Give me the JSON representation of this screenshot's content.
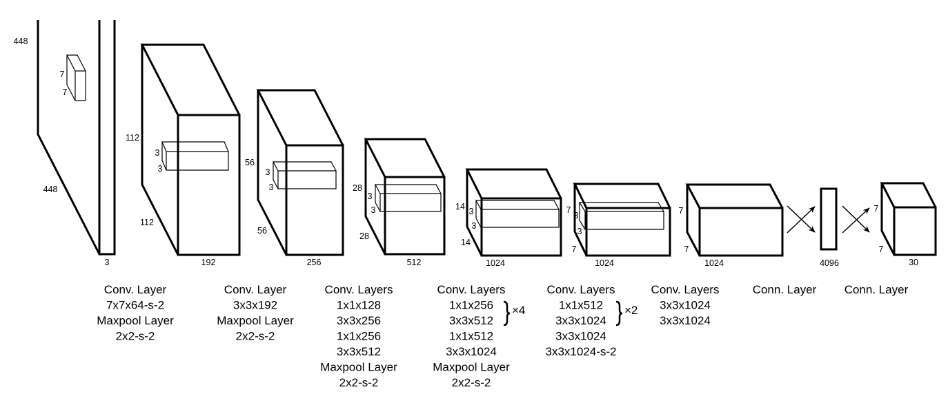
{
  "stages": [
    {
      "id": "input",
      "dims": [
        "448",
        "7",
        "7",
        "448",
        "3"
      ]
    },
    {
      "id": "stage1",
      "dims": [
        "112",
        "3",
        "3",
        "112",
        "192"
      ],
      "caption": [
        "Conv. Layer",
        "7x7x64-s-2",
        "Maxpool Layer",
        "2x2-s-2"
      ]
    },
    {
      "id": "stage2",
      "dims": [
        "56",
        "3",
        "3",
        "56",
        "256"
      ],
      "caption": [
        "Conv. Layer",
        "3x3x192",
        "Maxpool Layer",
        "2x2-s-2"
      ]
    },
    {
      "id": "stage3",
      "dims": [
        "28",
        "3",
        "3",
        "28",
        "512"
      ],
      "caption": [
        "Conv. Layers",
        "1x1x128",
        "3x3x256",
        "1x1x256",
        "3x3x512",
        "Maxpool Layer",
        "2x2-s-2"
      ]
    },
    {
      "id": "stage4",
      "dims": [
        "14",
        "3",
        "3",
        "14",
        "1024"
      ],
      "caption": [
        "Conv. Layers",
        "1x1x256",
        "3x3x512",
        "1x1x512",
        "3x3x1024",
        "Maxpool Layer",
        "2x2-s-2"
      ],
      "repeat": "×4"
    },
    {
      "id": "stage5",
      "dims": [
        "7",
        "3",
        "3",
        "7",
        "1024"
      ],
      "caption": [
        "Conv. Layers",
        "1x1x512",
        "3x3x1024",
        "3x3x1024",
        "3x3x1024-s-2"
      ],
      "repeat": "×2"
    },
    {
      "id": "stage6",
      "dims": [
        "7",
        "7",
        "1024"
      ],
      "caption": [
        "Conv. Layers",
        "3x3x1024",
        "3x3x1024"
      ]
    },
    {
      "id": "fc1",
      "dims": [
        "4096"
      ],
      "caption": [
        "Conn. Layer"
      ]
    },
    {
      "id": "fc2",
      "dims": [
        "7",
        "7",
        "30"
      ],
      "caption": [
        "Conn. Layer"
      ]
    }
  ]
}
